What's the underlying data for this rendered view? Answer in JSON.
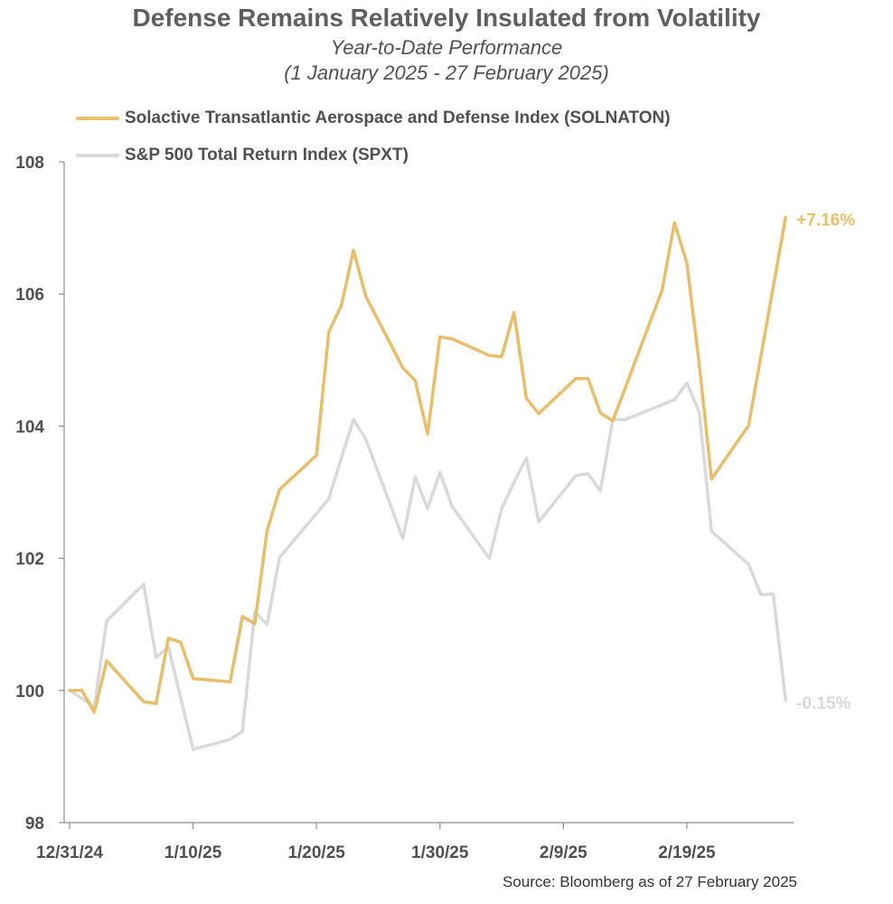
{
  "chart_data": {
    "type": "line",
    "title": "Defense Remains Relatively Insulated from Volatility",
    "subtitle_line1": "Year-to-Date Performance",
    "subtitle_line2": "(1 January 2025 - 27 February 2025)",
    "xlabel": "",
    "ylabel": "",
    "ylim": [
      98,
      108
    ],
    "yticks": [
      "108",
      "106",
      "104",
      "102",
      "100",
      "98"
    ],
    "ytick_values": [
      108,
      106,
      104,
      102,
      100,
      98
    ],
    "xticks": [
      {
        "label": "12/31/24",
        "day": 0
      },
      {
        "label": "1/10/25",
        "day": 10
      },
      {
        "label": "1/20/25",
        "day": 20
      },
      {
        "label": "1/30/25",
        "day": 30
      },
      {
        "label": "2/9/25",
        "day": 40
      },
      {
        "label": "2/19/25",
        "day": 50
      }
    ],
    "xlim": [
      0,
      58.5
    ],
    "legend_position": "top-left",
    "grid": false,
    "series": [
      {
        "name": "Solactive Transatlantic Aerospace and Defense Index (SOLNATON)",
        "color": "#E8BE6A",
        "end_label": "+7.16%",
        "x": [
          0,
          1,
          2,
          3,
          6,
          7,
          8,
          9,
          10,
          13,
          14,
          15,
          16,
          17,
          20,
          21,
          22,
          23,
          24,
          27,
          28,
          29,
          30,
          31,
          34,
          35,
          36,
          37,
          38,
          41,
          42,
          43,
          44,
          48,
          49,
          50,
          51,
          52,
          55,
          58
        ],
        "values": [
          100.0,
          100.0,
          99.67,
          100.45,
          99.83,
          99.8,
          100.79,
          100.73,
          100.18,
          100.13,
          101.12,
          101.01,
          102.42,
          103.04,
          103.56,
          105.43,
          105.82,
          106.66,
          105.96,
          104.88,
          104.69,
          103.88,
          105.35,
          105.32,
          105.07,
          105.05,
          105.72,
          104.42,
          104.19,
          104.72,
          104.72,
          104.2,
          104.08,
          106.06,
          107.08,
          106.47,
          104.94,
          103.2,
          104.01,
          107.16
        ]
      },
      {
        "name": "S&P 500 Total Return Index (SPXT)",
        "color": "#D9D9D9",
        "end_label": "-0.15%",
        "x": [
          0,
          1,
          2,
          3,
          6,
          7,
          8,
          10,
          13,
          14,
          15,
          16,
          17,
          21,
          22,
          23,
          24,
          27,
          28,
          29,
          30,
          31,
          34,
          35,
          36,
          37,
          38,
          41,
          42,
          43,
          44,
          45,
          49,
          50,
          51,
          52,
          55,
          56,
          57,
          58
        ],
        "values": [
          100.0,
          99.88,
          99.75,
          101.05,
          101.61,
          100.5,
          100.66,
          99.11,
          99.26,
          99.38,
          101.19,
          101.0,
          102.01,
          102.9,
          103.51,
          104.1,
          103.8,
          102.3,
          103.23,
          102.75,
          103.3,
          102.78,
          102.0,
          102.75,
          103.15,
          103.52,
          102.55,
          103.25,
          103.28,
          103.02,
          104.1,
          104.1,
          104.4,
          104.65,
          104.22,
          102.41,
          101.91,
          101.45,
          101.46,
          99.85
        ]
      }
    ]
  },
  "source": "Source: Bloomberg as of 27 February 2025"
}
